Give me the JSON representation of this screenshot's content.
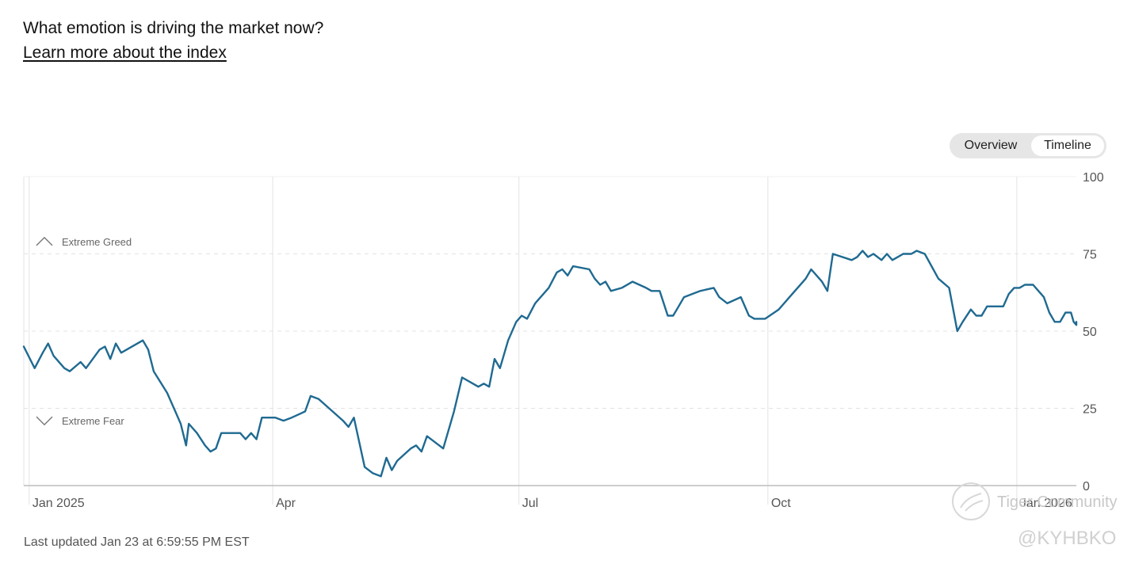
{
  "header": {
    "question": "What emotion is driving the market now?",
    "learn_more": "Learn more about the index"
  },
  "toggle": {
    "overview": "Overview",
    "timeline": "Timeline",
    "selected": "Timeline"
  },
  "footer": {
    "last_updated": "Last updated Jan 23 at 6:59:55 PM EST"
  },
  "watermark": {
    "text": "Tiger Community",
    "handle": "@KYHBKO"
  },
  "colors": {
    "line": "#1f6a91",
    "grid": "#e3e3e3",
    "axis_text": "#555555"
  },
  "chart_data": {
    "type": "line",
    "title": "",
    "xlabel": "",
    "ylabel": "",
    "ylim": [
      0,
      100
    ],
    "yticks": [
      0,
      25,
      50,
      75,
      100
    ],
    "x_ticks": [
      {
        "label": "Jan 2025",
        "date": "2025-01-01"
      },
      {
        "label": "Apr",
        "date": "2025-04-01"
      },
      {
        "label": "Jul",
        "date": "2025-07-01"
      },
      {
        "label": "Oct",
        "date": "2025-10-01"
      },
      {
        "label": "Jan 2026",
        "date": "2026-01-01"
      }
    ],
    "x_range": [
      "2024-12-30",
      "2026-01-23"
    ],
    "annotations": [
      {
        "label": "Extreme Greed",
        "icon": "chevron-up-icon",
        "y": 79
      },
      {
        "label": "Extreme Fear",
        "icon": "chevron-down-icon",
        "y": 21
      }
    ],
    "grid": true,
    "series": [
      {
        "color": "#1f6a91",
        "points": [
          [
            "2024-12-30",
            45
          ],
          [
            "2025-01-03",
            38
          ],
          [
            "2025-01-06",
            43
          ],
          [
            "2025-01-08",
            46
          ],
          [
            "2025-01-10",
            42
          ],
          [
            "2025-01-14",
            38
          ],
          [
            "2025-01-16",
            37
          ],
          [
            "2025-01-20",
            40
          ],
          [
            "2025-01-22",
            38
          ],
          [
            "2025-01-27",
            44
          ],
          [
            "2025-01-29",
            45
          ],
          [
            "2025-01-31",
            41
          ],
          [
            "2025-02-02",
            46
          ],
          [
            "2025-02-04",
            43
          ],
          [
            "2025-02-12",
            47
          ],
          [
            "2025-02-14",
            44
          ],
          [
            "2025-02-16",
            37
          ],
          [
            "2025-02-21",
            30
          ],
          [
            "2025-02-24",
            24
          ],
          [
            "2025-02-26",
            20
          ],
          [
            "2025-02-28",
            13
          ],
          [
            "2025-03-01",
            20
          ],
          [
            "2025-03-04",
            17
          ],
          [
            "2025-03-07",
            13
          ],
          [
            "2025-03-09",
            11
          ],
          [
            "2025-03-11",
            12
          ],
          [
            "2025-03-13",
            17
          ],
          [
            "2025-03-15",
            17
          ],
          [
            "2025-03-20",
            17
          ],
          [
            "2025-03-22",
            15
          ],
          [
            "2025-03-24",
            17
          ],
          [
            "2025-03-26",
            15
          ],
          [
            "2025-03-28",
            22
          ],
          [
            "2025-04-02",
            22
          ],
          [
            "2025-04-05",
            21
          ],
          [
            "2025-04-08",
            22
          ],
          [
            "2025-04-13",
            24
          ],
          [
            "2025-04-15",
            29
          ],
          [
            "2025-04-18",
            28
          ],
          [
            "2025-04-27",
            21
          ],
          [
            "2025-04-29",
            19
          ],
          [
            "2025-05-01",
            22
          ],
          [
            "2025-05-03",
            14
          ],
          [
            "2025-05-05",
            6
          ],
          [
            "2025-05-08",
            4
          ],
          [
            "2025-05-11",
            3
          ],
          [
            "2025-05-13",
            9
          ],
          [
            "2025-05-15",
            5
          ],
          [
            "2025-05-17",
            8
          ],
          [
            "2025-05-22",
            12
          ],
          [
            "2025-05-24",
            13
          ],
          [
            "2025-05-26",
            11
          ],
          [
            "2025-05-28",
            16
          ],
          [
            "2025-06-03",
            12
          ],
          [
            "2025-06-07",
            24
          ],
          [
            "2025-06-10",
            35
          ],
          [
            "2025-06-14",
            33
          ],
          [
            "2025-06-16",
            32
          ],
          [
            "2025-06-18",
            33
          ],
          [
            "2025-06-20",
            32
          ],
          [
            "2025-06-22",
            41
          ],
          [
            "2025-06-24",
            38
          ],
          [
            "2025-06-27",
            47
          ],
          [
            "2025-06-30",
            53
          ],
          [
            "2025-07-02",
            55
          ],
          [
            "2025-07-04",
            54
          ],
          [
            "2025-07-07",
            59
          ],
          [
            "2025-07-09",
            61
          ],
          [
            "2025-07-12",
            64
          ],
          [
            "2025-07-15",
            69
          ],
          [
            "2025-07-17",
            70
          ],
          [
            "2025-07-19",
            68
          ],
          [
            "2025-07-21",
            71
          ],
          [
            "2025-07-27",
            70
          ],
          [
            "2025-07-29",
            67
          ],
          [
            "2025-07-31",
            65
          ],
          [
            "2025-08-02",
            66
          ],
          [
            "2025-08-04",
            63
          ],
          [
            "2025-08-08",
            64
          ],
          [
            "2025-08-12",
            66
          ],
          [
            "2025-08-17",
            64
          ],
          [
            "2025-08-19",
            63
          ],
          [
            "2025-08-22",
            63
          ],
          [
            "2025-08-25",
            55
          ],
          [
            "2025-08-27",
            55
          ],
          [
            "2025-08-29",
            58
          ],
          [
            "2025-08-31",
            61
          ],
          [
            "2025-09-06",
            63
          ],
          [
            "2025-09-11",
            64
          ],
          [
            "2025-09-13",
            61
          ],
          [
            "2025-09-16",
            59
          ],
          [
            "2025-09-21",
            61
          ],
          [
            "2025-09-24",
            55
          ],
          [
            "2025-09-26",
            54
          ],
          [
            "2025-09-30",
            54
          ],
          [
            "2025-10-05",
            57
          ],
          [
            "2025-10-09",
            61
          ],
          [
            "2025-10-15",
            67
          ],
          [
            "2025-10-17",
            70
          ],
          [
            "2025-10-20",
            67
          ],
          [
            "2025-10-21",
            66
          ],
          [
            "2025-10-23",
            63
          ],
          [
            "2025-10-25",
            75
          ],
          [
            "2025-11-01",
            73
          ],
          [
            "2025-11-03",
            74
          ],
          [
            "2025-11-05",
            76
          ],
          [
            "2025-11-07",
            74
          ],
          [
            "2025-11-09",
            75
          ],
          [
            "2025-11-12",
            73
          ],
          [
            "2025-11-14",
            75
          ],
          [
            "2025-11-16",
            73
          ],
          [
            "2025-11-18",
            74
          ],
          [
            "2025-11-20",
            75
          ],
          [
            "2025-11-23",
            75
          ],
          [
            "2025-11-25",
            76
          ],
          [
            "2025-11-28",
            75
          ],
          [
            "2025-12-03",
            67
          ],
          [
            "2025-12-07",
            64
          ],
          [
            "2025-12-10",
            50
          ],
          [
            "2025-12-12",
            53
          ],
          [
            "2025-12-15",
            57
          ],
          [
            "2025-12-17",
            55
          ],
          [
            "2025-12-19",
            55
          ],
          [
            "2025-12-21",
            58
          ],
          [
            "2025-12-27",
            58
          ],
          [
            "2025-12-29",
            62
          ],
          [
            "2025-12-31",
            64
          ],
          [
            "2026-01-02",
            64
          ],
          [
            "2026-01-04",
            65
          ],
          [
            "2026-01-07",
            65
          ],
          [
            "2026-01-09",
            63
          ],
          [
            "2026-01-11",
            61
          ],
          [
            "2026-01-13",
            56
          ],
          [
            "2026-01-15",
            53
          ],
          [
            "2026-01-17",
            53
          ],
          [
            "2026-01-19",
            56
          ],
          [
            "2026-01-21",
            56
          ],
          [
            "2026-01-22",
            53
          ],
          [
            "2026-01-23",
            52
          ],
          [
            "2026-01-23",
            53
          ]
        ]
      }
    ]
  }
}
